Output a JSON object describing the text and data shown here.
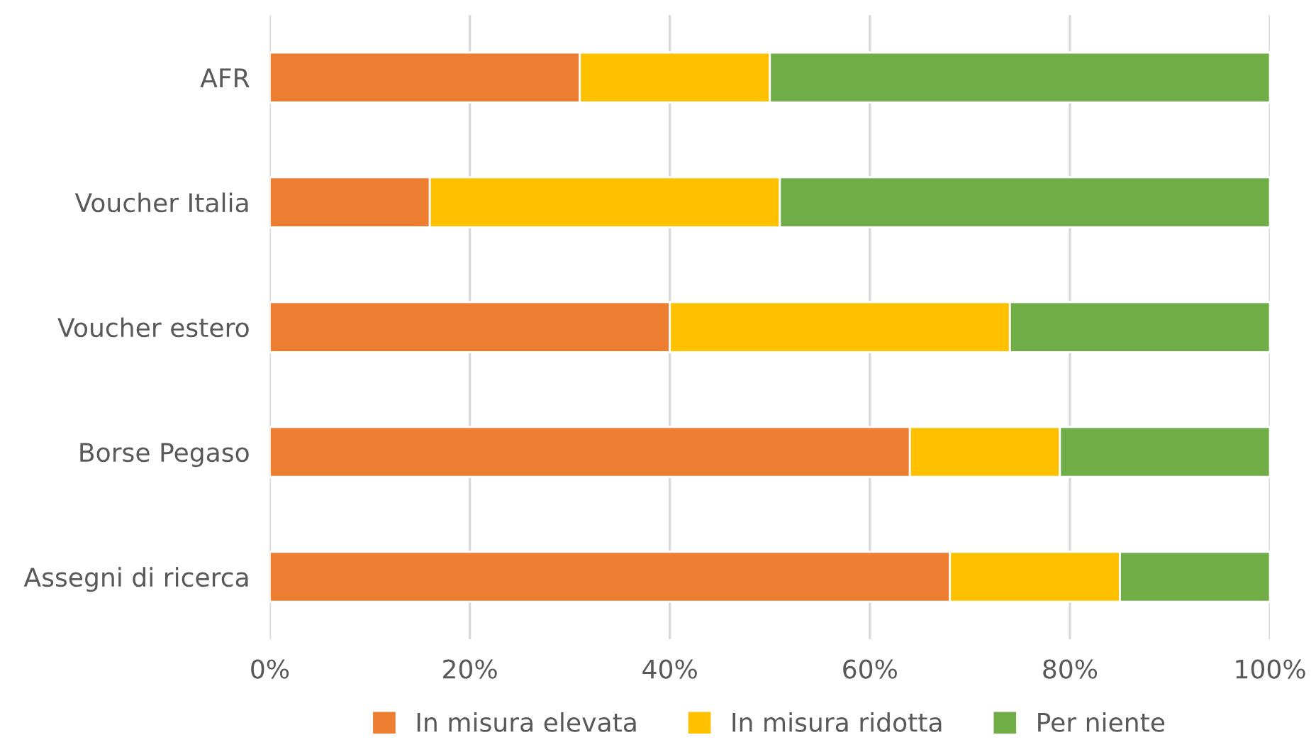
{
  "chart_data": {
    "type": "bar",
    "orientation": "horizontal",
    "stacked": true,
    "categories": [
      "AFR",
      "Voucher Italia",
      "Voucher estero",
      "Borse Pegaso",
      "Assegni di ricerca"
    ],
    "series": [
      {
        "name": "In misura elevata",
        "color": "#ed7d31",
        "values": [
          31,
          16,
          40,
          64,
          68
        ]
      },
      {
        "name": "In misura ridotta",
        "color": "#ffc000",
        "values": [
          19,
          35,
          34,
          15,
          17
        ]
      },
      {
        "name": "Per niente",
        "color": "#70ad47",
        "values": [
          50,
          49,
          26,
          21,
          15
        ]
      }
    ],
    "xlim": [
      0,
      100
    ],
    "xticks": [
      {
        "value": 0,
        "label": "0%"
      },
      {
        "value": 20,
        "label": "20%"
      },
      {
        "value": 40,
        "label": "40%"
      },
      {
        "value": 60,
        "label": "60%"
      },
      {
        "value": 80,
        "label": "80%"
      },
      {
        "value": 100,
        "label": "100%"
      }
    ],
    "grid": "x",
    "legend": "bottom"
  }
}
